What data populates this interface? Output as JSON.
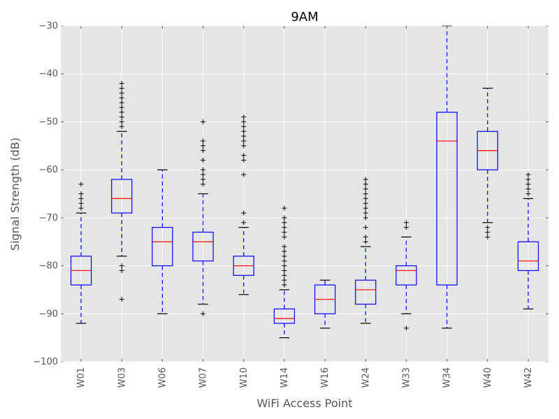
{
  "chart_data": {
    "type": "boxplot",
    "title": "9AM",
    "xlabel": "WiFi Access Point",
    "ylabel": "Signal Strength (dB)",
    "ylim": [
      -100,
      -30
    ],
    "yticks": [
      -100,
      -90,
      -80,
      -70,
      -60,
      -50,
      -40,
      -30
    ],
    "ytick_labels": [
      "−100",
      "−90",
      "−80",
      "−70",
      "−60",
      "−50",
      "−40",
      "−30"
    ],
    "grid": true,
    "background": "#e5e5e5",
    "colors": {
      "box": "#0000ff",
      "whisker": "#0000ff",
      "median": "#ff0000",
      "cap": "#000000",
      "flier": "#000000",
      "grid": "#ffffff"
    },
    "categories": [
      "W01",
      "W03",
      "W06",
      "W07",
      "W10",
      "W14",
      "W16",
      "W24",
      "W33",
      "W34",
      "W40",
      "W42"
    ],
    "boxes": [
      {
        "name": "W01",
        "q1": -84,
        "median": -81,
        "q3": -78,
        "whisker_low": -92,
        "whisker_high": -69,
        "fliers": [
          -63,
          -65,
          -66,
          -67,
          -68
        ]
      },
      {
        "name": "W03",
        "q1": -69,
        "median": -66,
        "q3": -62,
        "whisker_low": -78,
        "whisker_high": -52,
        "fliers": [
          -80,
          -81,
          -87,
          -42,
          -43,
          -44,
          -45,
          -46,
          -47,
          -48,
          -49,
          -50,
          -51
        ]
      },
      {
        "name": "W06",
        "q1": -80,
        "median": -75,
        "q3": -72,
        "whisker_low": -90,
        "whisker_high": -60,
        "fliers": []
      },
      {
        "name": "W07",
        "q1": -79,
        "median": -75,
        "q3": -73,
        "whisker_low": -88,
        "whisker_high": -65,
        "fliers": [
          -90,
          -50,
          -54,
          -55,
          -56,
          -58,
          -60,
          -61,
          -62,
          -63
        ]
      },
      {
        "name": "W10",
        "q1": -82,
        "median": -80,
        "q3": -78,
        "whisker_low": -86,
        "whisker_high": -72,
        "fliers": [
          -71,
          -69,
          -61,
          -58,
          -57,
          -55,
          -54,
          -53,
          -52,
          -51,
          -50,
          -49
        ]
      },
      {
        "name": "W14",
        "q1": -92,
        "median": -91,
        "q3": -89,
        "whisker_low": -95,
        "whisker_high": -85,
        "fliers": [
          -68,
          -70,
          -71,
          -72,
          -73,
          -74,
          -76,
          -77,
          -78,
          -79,
          -80,
          -81,
          -82,
          -83,
          -84
        ]
      },
      {
        "name": "W16",
        "q1": -90,
        "median": -87,
        "q3": -84,
        "whisker_low": -93,
        "whisker_high": -83,
        "fliers": []
      },
      {
        "name": "W24",
        "q1": -88,
        "median": -85,
        "q3": -83,
        "whisker_low": -92,
        "whisker_high": -76,
        "fliers": [
          -62,
          -63,
          -64,
          -65,
          -66,
          -67,
          -68,
          -69,
          -70,
          -72,
          -74,
          -75
        ]
      },
      {
        "name": "W33",
        "q1": -84,
        "median": -81,
        "q3": -80,
        "whisker_low": -90,
        "whisker_high": -74,
        "fliers": [
          -71,
          -72,
          -93
        ]
      },
      {
        "name": "W34",
        "q1": -84,
        "median": -54,
        "q3": -48,
        "whisker_low": -93,
        "whisker_high": -30,
        "fliers": []
      },
      {
        "name": "W40",
        "q1": -60,
        "median": -56,
        "q3": -52,
        "whisker_low": -71,
        "whisker_high": -43,
        "fliers": [
          -72,
          -73,
          -74
        ]
      },
      {
        "name": "W42",
        "q1": -81,
        "median": -79,
        "q3": -75,
        "whisker_low": -89,
        "whisker_high": -66,
        "fliers": [
          -61,
          -62,
          -63,
          -64,
          -65
        ]
      }
    ]
  }
}
